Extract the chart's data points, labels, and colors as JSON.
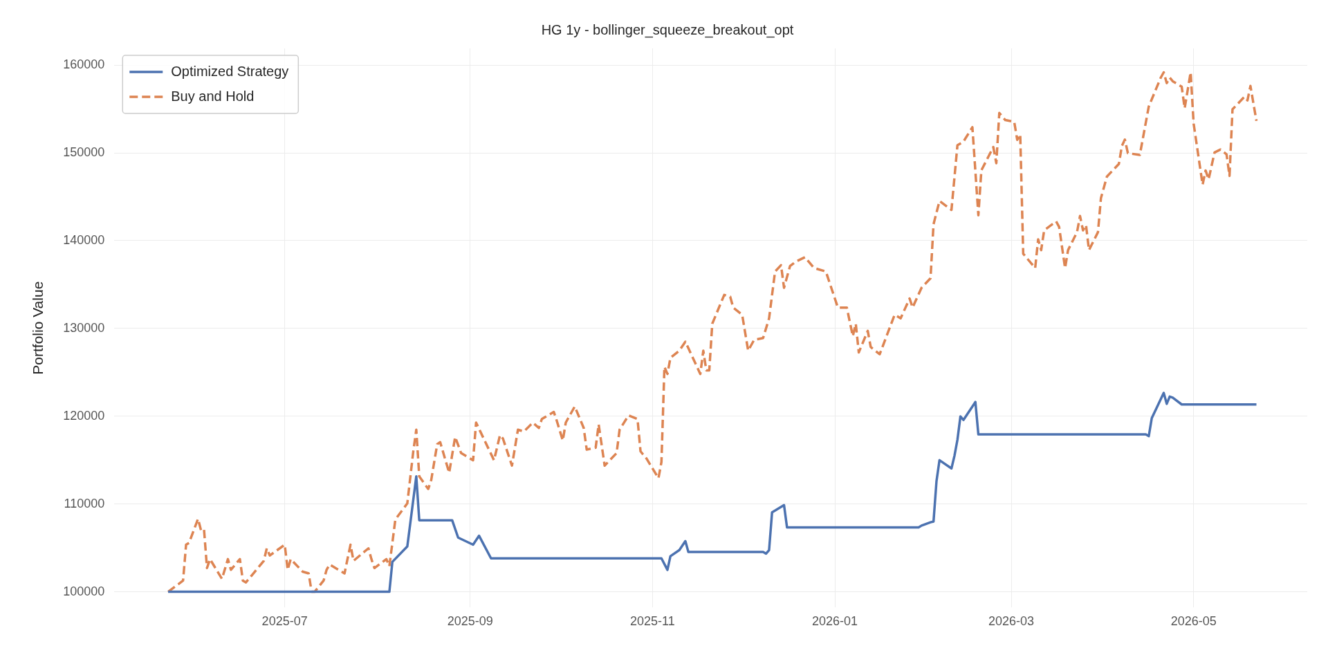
{
  "chart_data": {
    "type": "line",
    "title": "HG 1y - bollinger_squeeze_breakout_opt",
    "ylabel": "Portfolio Value",
    "xlim": [
      "2025-05-05",
      "2026-06-08"
    ],
    "ylim": [
      98200,
      161900
    ],
    "xticks": [
      {
        "value": "2025-07-01",
        "label": "2025-07"
      },
      {
        "value": "2025-09-01",
        "label": "2025-09"
      },
      {
        "value": "2025-11-01",
        "label": "2025-11"
      },
      {
        "value": "2026-01-01",
        "label": "2026-01"
      },
      {
        "value": "2026-03-01",
        "label": "2026-03"
      },
      {
        "value": "2026-05-01",
        "label": "2026-05"
      }
    ],
    "yticks": [
      100000,
      110000,
      120000,
      130000,
      140000,
      150000,
      160000
    ],
    "grid": true,
    "legend": "top left",
    "series": [
      {
        "name": "Optimized Strategy",
        "color": "#4c72b0",
        "line_style": "solid",
        "x": [
          "2025-05-23",
          "2025-08-05",
          "2025-08-06",
          "2025-08-11",
          "2025-08-14",
          "2025-08-15",
          "2025-08-26",
          "2025-08-28",
          "2025-09-02",
          "2025-09-04",
          "2025-09-08",
          "2025-11-04",
          "2025-11-06",
          "2025-11-07",
          "2025-11-10",
          "2025-11-12",
          "2025-11-13",
          "2025-12-08",
          "2025-12-09",
          "2025-12-10",
          "2025-12-11",
          "2025-12-15",
          "2025-12-16",
          "2026-01-29",
          "2026-01-30",
          "2026-02-02",
          "2026-02-03",
          "2026-02-04",
          "2026-02-05",
          "2026-02-09",
          "2026-02-10",
          "2026-02-11",
          "2026-02-12",
          "2026-02-13",
          "2026-02-17",
          "2026-02-18",
          "2026-04-15",
          "2026-04-16",
          "2026-04-17",
          "2026-04-21",
          "2026-04-22",
          "2026-04-23",
          "2026-04-24",
          "2026-04-27",
          "2026-05-22"
        ],
        "values": [
          100000,
          100000,
          103400,
          105160,
          113140,
          108150,
          108150,
          106170,
          105360,
          106380,
          103810,
          103810,
          102500,
          104050,
          104750,
          105770,
          104540,
          104540,
          104340,
          104750,
          109050,
          109870,
          107330,
          107330,
          107540,
          107910,
          108000,
          112620,
          114990,
          114050,
          115480,
          117320,
          119980,
          119570,
          121620,
          117930,
          117930,
          117730,
          119780,
          122650,
          121410,
          122240,
          122120,
          121340,
          121340
        ]
      },
      {
        "name": "Buy and Hold",
        "color": "#dd8452",
        "line_style": "dashed",
        "x": [
          "2025-05-23",
          "2025-05-28",
          "2025-05-29",
          "2025-05-30",
          "2025-06-02",
          "2025-06-03",
          "2025-06-04",
          "2025-06-05",
          "2025-06-06",
          "2025-06-10",
          "2025-06-12",
          "2025-06-13",
          "2025-06-16",
          "2025-06-17",
          "2025-06-18",
          "2025-06-24",
          "2025-06-25",
          "2025-06-26",
          "2025-07-01",
          "2025-07-02",
          "2025-07-03",
          "2025-07-07",
          "2025-07-09",
          "2025-07-10",
          "2025-07-11",
          "2025-07-14",
          "2025-07-15",
          "2025-07-16",
          "2025-07-21",
          "2025-07-23",
          "2025-07-24",
          "2025-07-29",
          "2025-07-30",
          "2025-07-31",
          "2025-08-04",
          "2025-08-05",
          "2025-08-07",
          "2025-08-11",
          "2025-08-13",
          "2025-08-14",
          "2025-08-15",
          "2025-08-18",
          "2025-08-19",
          "2025-08-21",
          "2025-08-22",
          "2025-08-25",
          "2025-08-27",
          "2025-08-29",
          "2025-09-02",
          "2025-09-03",
          "2025-09-09",
          "2025-09-11",
          "2025-09-12",
          "2025-09-15",
          "2025-09-17",
          "2025-09-19",
          "2025-09-22",
          "2025-09-24",
          "2025-09-25",
          "2025-09-29",
          "2025-09-30",
          "2025-10-02",
          "2025-10-03",
          "2025-10-06",
          "2025-10-09",
          "2025-10-10",
          "2025-10-13",
          "2025-10-14",
          "2025-10-16",
          "2025-10-20",
          "2025-10-21",
          "2025-10-24",
          "2025-10-27",
          "2025-10-28",
          "2025-10-30",
          "2025-11-03",
          "2025-11-04",
          "2025-11-05",
          "2025-11-06",
          "2025-11-07",
          "2025-11-10",
          "2025-11-12",
          "2025-11-17",
          "2025-11-18",
          "2025-11-19",
          "2025-11-20",
          "2025-11-21",
          "2025-11-25",
          "2025-11-27",
          "2025-11-28",
          "2025-12-01",
          "2025-12-03",
          "2025-12-05",
          "2025-12-08",
          "2025-12-10",
          "2025-12-12",
          "2025-12-14",
          "2025-12-15",
          "2025-12-17",
          "2025-12-19",
          "2025-12-22",
          "2025-12-25",
          "2025-12-29",
          "2026-01-02",
          "2026-01-05",
          "2026-01-07",
          "2026-01-08",
          "2026-01-09",
          "2026-01-12",
          "2026-01-13",
          "2026-01-16",
          "2026-01-21",
          "2026-01-23",
          "2026-01-26",
          "2026-01-27",
          "2026-01-30",
          "2026-02-02",
          "2026-02-03",
          "2026-02-05",
          "2026-02-09",
          "2026-02-11",
          "2026-02-13",
          "2026-02-16",
          "2026-02-18",
          "2026-02-19",
          "2026-02-23",
          "2026-02-24",
          "2026-02-25",
          "2026-02-27",
          "2026-03-02",
          "2026-03-03",
          "2026-03-04",
          "2026-03-05",
          "2026-03-09",
          "2026-03-10",
          "2026-03-11",
          "2026-03-12",
          "2026-03-16",
          "2026-03-17",
          "2026-03-19",
          "2026-03-20",
          "2026-03-23",
          "2026-03-24",
          "2026-03-25",
          "2026-03-26",
          "2026-03-27",
          "2026-03-30",
          "2026-03-31",
          "2026-04-02",
          "2026-04-06",
          "2026-04-07",
          "2026-04-08",
          "2026-04-09",
          "2026-04-13",
          "2026-04-16",
          "2026-04-20",
          "2026-04-21",
          "2026-04-22",
          "2026-04-23",
          "2026-04-24",
          "2026-04-27",
          "2026-04-28",
          "2026-04-30",
          "2026-05-01",
          "2026-05-04",
          "2026-05-05",
          "2026-05-06",
          "2026-05-08",
          "2026-05-10",
          "2026-05-12",
          "2026-05-13",
          "2026-05-14",
          "2026-05-18",
          "2026-05-19",
          "2026-05-20",
          "2026-05-22"
        ],
        "values": [
          100000,
          101270,
          105360,
          105570,
          108310,
          107000,
          107120,
          102700,
          103720,
          101470,
          103720,
          102500,
          103720,
          101270,
          101060,
          103520,
          104950,
          104130,
          105360,
          102500,
          103720,
          102290,
          102090,
          100000,
          100000,
          101270,
          102500,
          103110,
          102090,
          105360,
          103520,
          104950,
          103720,
          102700,
          103720,
          102910,
          108230,
          110070,
          116000,
          118460,
          113140,
          111710,
          112730,
          116820,
          117040,
          113550,
          117640,
          115800,
          114980,
          119270,
          114980,
          117840,
          117440,
          114370,
          118460,
          118260,
          119270,
          118660,
          119680,
          120490,
          119470,
          117230,
          119270,
          121110,
          118660,
          116200,
          116410,
          119070,
          114370,
          115800,
          118460,
          120090,
          119680,
          116000,
          115180,
          112930,
          114780,
          125630,
          124810,
          126650,
          127470,
          128490,
          124810,
          127470,
          125220,
          125220,
          130540,
          133820,
          133610,
          132380,
          131560,
          127470,
          128700,
          128900,
          131150,
          136480,
          137210,
          134640,
          137100,
          137620,
          138110,
          136890,
          136480,
          132380,
          132380,
          129110,
          130540,
          127270,
          129720,
          127880,
          127060,
          131560,
          131150,
          133410,
          132380,
          134640,
          135720,
          141860,
          144520,
          143500,
          150870,
          151280,
          152920,
          142890,
          148010,
          150660,
          148820,
          154550,
          153740,
          153530,
          151480,
          152100,
          138510,
          136870,
          140150,
          138920,
          141170,
          142190,
          141580,
          136870,
          138920,
          140970,
          142810,
          141170,
          141780,
          138920,
          140970,
          144850,
          147300,
          148740,
          150790,
          151520,
          149970,
          149760,
          155290,
          158570,
          159180,
          157950,
          158570,
          158160,
          157540,
          155090,
          159180,
          153330,
          146370,
          148000,
          146980,
          150050,
          150380,
          149840,
          147390,
          154960,
          156390,
          155980,
          157620,
          153650
        ]
      }
    ]
  }
}
